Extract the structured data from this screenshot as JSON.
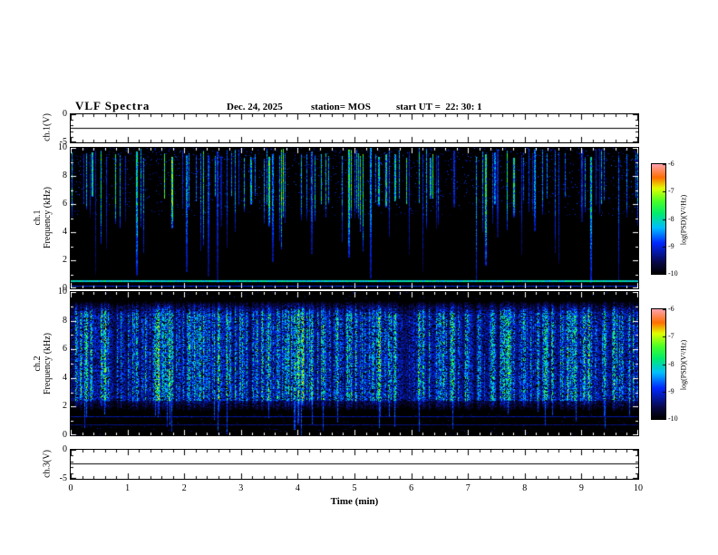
{
  "header": {
    "title": "VLF Spectra",
    "date": "Dec. 24, 2025",
    "station": "station= MOS",
    "start_ut": "start UT =  22: 30: 1"
  },
  "panels": {
    "ch1v": {
      "label": "ch.1(V)",
      "yticks": [
        "0",
        "-5"
      ]
    },
    "ch1": {
      "channel": "ch.1",
      "axis": "Frequency (kHz)",
      "yticks": [
        "10",
        "8",
        "6",
        "4",
        "2",
        "0"
      ]
    },
    "ch2": {
      "channel": "ch.2",
      "axis": "Frequency (kHz)",
      "yticks": [
        "10",
        "8",
        "6",
        "4",
        "2",
        "0"
      ]
    },
    "ch3v": {
      "label": "ch.3(V)",
      "yticks": [
        "0",
        "-5"
      ]
    }
  },
  "xaxis": {
    "label": "Time (min)",
    "ticks": [
      "0",
      "1",
      "2",
      "3",
      "4",
      "5",
      "6",
      "7",
      "8",
      "9",
      "10"
    ]
  },
  "colorbar": {
    "label": "log(PSD)(V²/Hz)",
    "ticks": [
      "-6",
      "-7",
      "-8",
      "-9",
      "-10"
    ]
  },
  "chart_data": {
    "type": "heatmap",
    "title": "VLF Spectra",
    "subtitle": "Dec. 24, 2025  station= MOS  start UT = 22:30:1",
    "x": {
      "label": "Time (min)",
      "range": [
        0,
        10
      ],
      "ticks": [
        0,
        1,
        2,
        3,
        4,
        5,
        6,
        7,
        8,
        9,
        10
      ]
    },
    "colorbar": {
      "label": "log(PSD)(V²/Hz)",
      "range_top_to_bottom": [
        -6,
        -10
      ],
      "ticks": [
        -6,
        -7,
        -8,
        -9,
        -10
      ]
    },
    "colormap_stops": [
      [
        0.0,
        [
          0,
          0,
          0
        ]
      ],
      [
        0.1,
        [
          8,
          8,
          70
        ]
      ],
      [
        0.28,
        [
          0,
          40,
          255
        ]
      ],
      [
        0.42,
        [
          0,
          190,
          255
        ]
      ],
      [
        0.55,
        [
          0,
          235,
          110
        ]
      ],
      [
        0.66,
        [
          70,
          255,
          40
        ]
      ],
      [
        0.78,
        [
          225,
          255,
          0
        ]
      ],
      [
        0.88,
        [
          255,
          110,
          0
        ]
      ],
      [
        1.0,
        [
          255,
          160,
          170
        ]
      ]
    ],
    "panels": [
      {
        "id": "ch1_voltage",
        "ylabel": "ch.1(V)",
        "yrange": [
          -5,
          0
        ],
        "yticks": [
          0,
          -5
        ],
        "signal": "flat baseline",
        "level_v": -2.4,
        "level_frac": 0.47
      },
      {
        "id": "ch1_spectrogram",
        "ylabel": "Frequency (kHz)",
        "yrange": [
          0,
          10
        ],
        "description": "sparse vertical broadband impulses mostly 4-10 kHz on black background, persistent narrow line near 0.5 kHz",
        "seed": 1234,
        "speckle": 0.05,
        "speckle_band": [
          5.2,
          10
        ],
        "streak_prob": 0.2,
        "bright_frac": 0.22,
        "hlines": [
          {
            "f": 0.5,
            "v": 0.5,
            "wpx": 2
          },
          {
            "f": 0.12,
            "v": 0.28,
            "wpx": 1
          }
        ]
      },
      {
        "id": "ch2_spectrogram",
        "ylabel": "Frequency (kHz)",
        "yrange": [
          0,
          10
        ],
        "description": "dense broadband activity 2.5-9 kHz with bright green impulse cores, faint lines near 1.2 and 0.7 kHz",
        "seed": 977,
        "burst_prob": 0.4,
        "band": [
          2.4,
          9.5
        ],
        "hlines": [
          {
            "f": 1.25,
            "v": 0.2,
            "wpx": 1
          },
          {
            "f": 0.7,
            "v": 0.16,
            "wpx": 1
          }
        ]
      },
      {
        "id": "ch3_voltage",
        "ylabel": "ch.3(V)",
        "yrange": [
          -5,
          0
        ],
        "yticks": [
          0,
          -5
        ],
        "signal": "flat baseline",
        "level_v": -2.4,
        "level_frac": 0.47
      }
    ]
  }
}
